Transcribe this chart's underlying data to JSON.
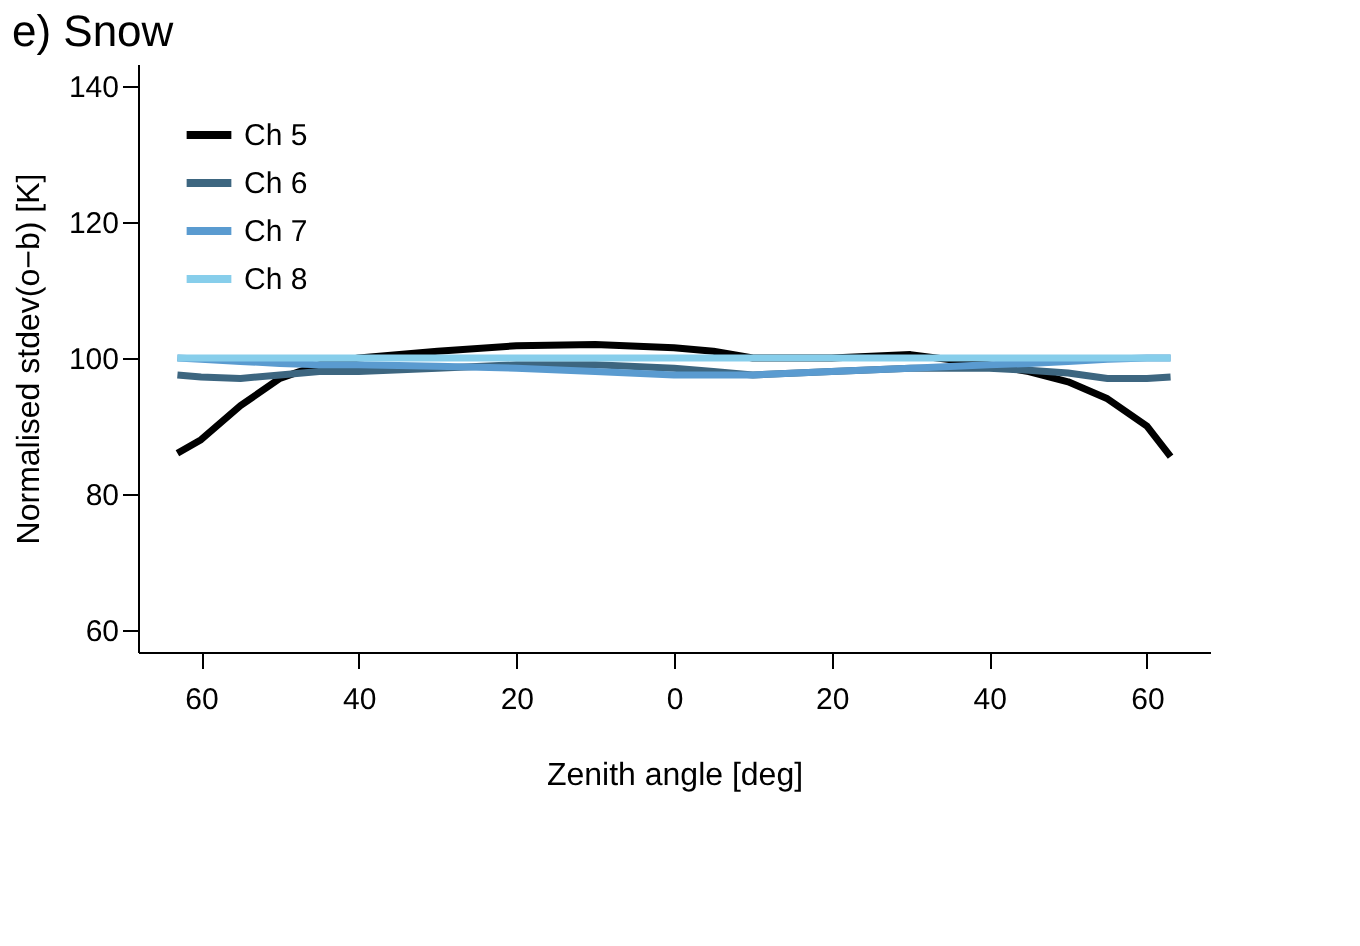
{
  "chart_data": {
    "type": "line",
    "title": "e) Snow",
    "xlabel": "Zenith angle [deg]",
    "ylabel": "Normalised stdev(o−b) [K]",
    "x": [
      -63,
      -60,
      -55,
      -50,
      -45,
      -40,
      -30,
      -20,
      -10,
      0,
      5,
      10,
      20,
      30,
      40,
      45,
      50,
      55,
      60,
      63
    ],
    "series": [
      {
        "name": "Ch 5",
        "color": "#000000",
        "values": [
          86,
          88,
          93,
          97,
          99,
          100,
          101,
          101.8,
          102,
          101.5,
          101,
          100,
          100,
          100.5,
          99,
          98,
          96.5,
          94,
          90,
          85.5
        ]
      },
      {
        "name": "Ch 6",
        "color": "#3d6680",
        "values": [
          97.5,
          97.2,
          97,
          97.5,
          98,
          98,
          98.5,
          99,
          99,
          98.5,
          98,
          97.5,
          98,
          98.5,
          98.5,
          98.2,
          97.8,
          97,
          97,
          97.2
        ]
      },
      {
        "name": "Ch 7",
        "color": "#5a9bd0",
        "values": [
          100,
          99.8,
          99.5,
          99.2,
          99,
          99,
          98.8,
          98.5,
          98,
          97.5,
          97.5,
          97.5,
          98,
          98.5,
          99,
          99.2,
          99.5,
          99.8,
          100,
          100
        ]
      },
      {
        "name": "Ch 8",
        "color": "#87ceeb",
        "values": [
          100,
          100,
          100,
          100,
          100,
          100,
          100,
          100,
          100,
          100,
          100,
          100,
          100,
          100,
          100,
          100,
          100,
          100,
          100,
          100
        ]
      }
    ],
    "xlim": [
      -68,
      68
    ],
    "ylim": [
      56.8,
      143.2
    ],
    "xticks": [
      {
        "value": -60,
        "label": "60"
      },
      {
        "value": -40,
        "label": "40"
      },
      {
        "value": -20,
        "label": "20"
      },
      0,
      {
        "value": 20,
        "label": "20"
      },
      {
        "value": 40,
        "label": "40"
      },
      {
        "value": 60,
        "label": "60"
      }
    ],
    "yticks": [
      60,
      80,
      100,
      120,
      140
    ],
    "legend": "top left",
    "grid": false,
    "line_style": "solid",
    "marker": "none"
  }
}
